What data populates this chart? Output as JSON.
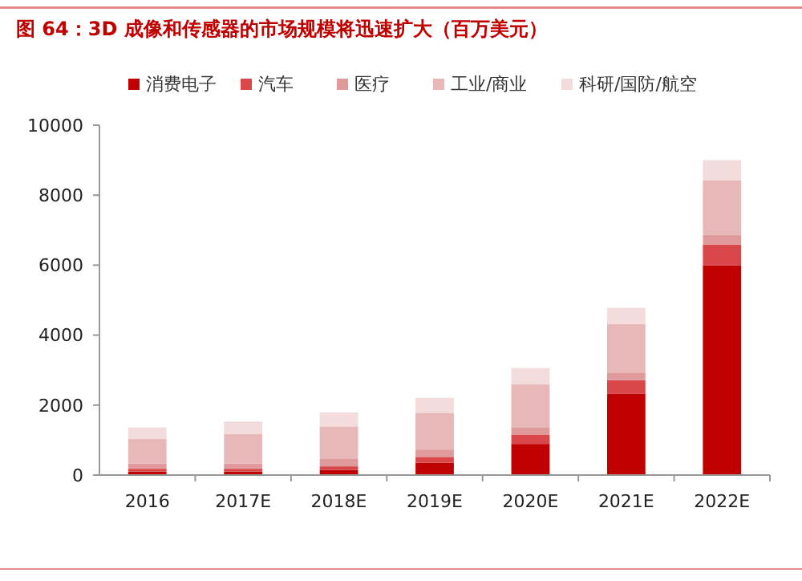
{
  "chart_data": {
    "type": "bar",
    "title": "图 64：3D 成像和传感器的市场规模将迅速扩大（百万美元）",
    "categories": [
      "2016",
      "2017E",
      "2018E",
      "2019E",
      "2020E",
      "2021E",
      "2022E"
    ],
    "stacked": true,
    "legend": "top",
    "grid": false,
    "ylim": [
      0,
      10000
    ],
    "yticks": [
      0,
      2000,
      4000,
      6000,
      8000,
      10000
    ],
    "series": [
      {
        "name": "消费电子",
        "color": "#c00000",
        "values": [
          100,
          100,
          150,
          350,
          890,
          2330,
          5990
        ]
      },
      {
        "name": "汽车",
        "color": "#d9474a",
        "values": [
          80,
          80,
          100,
          170,
          270,
          380,
          600
        ]
      },
      {
        "name": "医疗",
        "color": "#e09a9c",
        "values": [
          150,
          150,
          210,
          210,
          210,
          220,
          270
        ]
      },
      {
        "name": "工业/商业",
        "color": "#e8b7b8",
        "values": [
          700,
          840,
          930,
          1050,
          1220,
          1390,
          1570
        ]
      },
      {
        "name": "科研/国防/航空",
        "color": "#f4dcdc",
        "values": [
          330,
          360,
          400,
          430,
          470,
          460,
          570
        ]
      }
    ]
  }
}
